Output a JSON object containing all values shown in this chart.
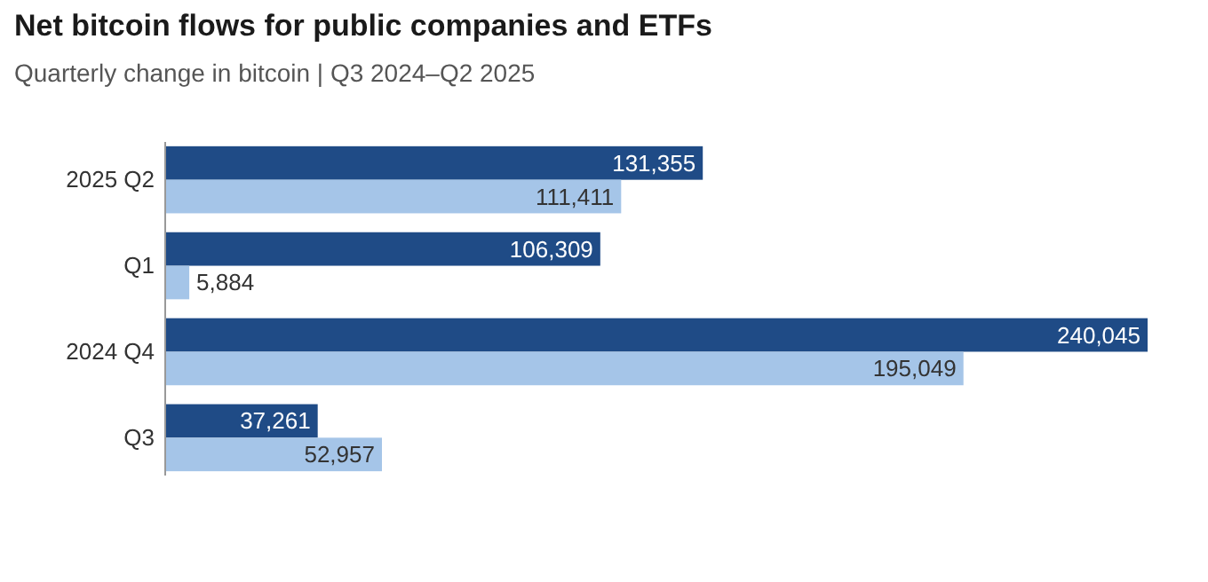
{
  "chart_data": {
    "type": "bar",
    "orientation": "horizontal",
    "title": "Net bitcoin flows for public companies and ETFs",
    "subtitle": "Quarterly change in bitcoin | Q3 2024–Q2 2025",
    "categories": [
      "2025 Q2",
      "Q1",
      "2024 Q4",
      "Q3"
    ],
    "series": [
      {
        "color": "#1f4b86",
        "values": [
          131355,
          106309,
          240045,
          37261
        ],
        "value_labels": [
          "131,355",
          "106,309",
          "240,045",
          "37,261"
        ]
      },
      {
        "color": "#a5c5e8",
        "values": [
          111411,
          5884,
          195049,
          52957
        ],
        "value_labels": [
          "111,411",
          "5,884",
          "195,049",
          "52,957"
        ]
      }
    ]
  }
}
